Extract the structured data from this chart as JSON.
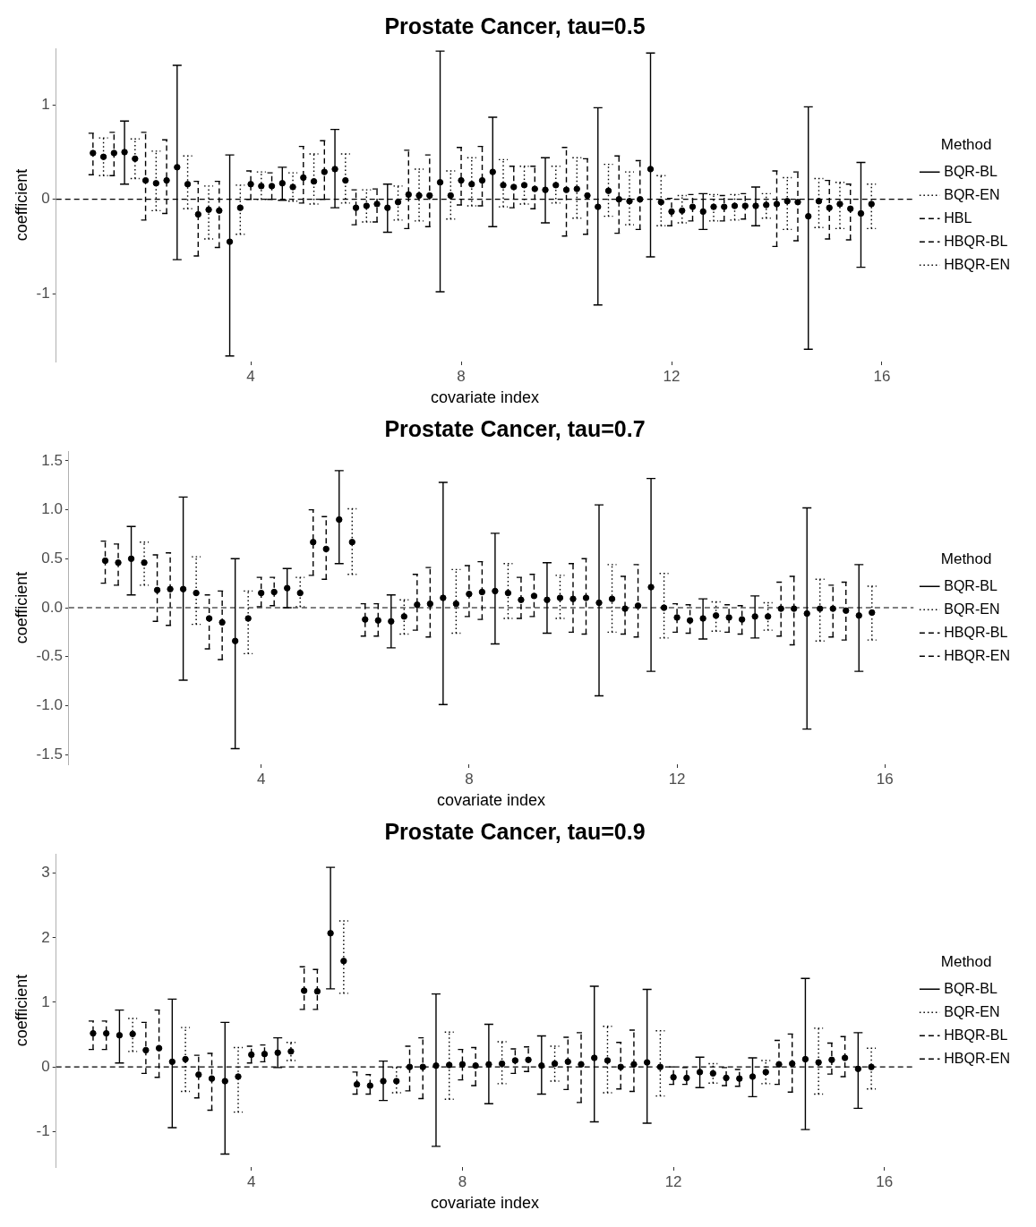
{
  "chart_data": [
    {
      "type": "scatter",
      "title": "Prostate Cancer, tau=0.5",
      "xlabel": "covariate index",
      "ylabel": "coefficient",
      "legend_title": "Method",
      "legend": "right",
      "marker": "circle",
      "grid": false,
      "xlim": [
        0.3,
        16.6
      ],
      "xticks": [
        4,
        8,
        12,
        16
      ],
      "ylim": [
        -1.72,
        1.6
      ],
      "yticks": [
        -1,
        0,
        1
      ],
      "ref_lines": [
        {
          "axis": "y",
          "value": 0,
          "line_style": "dashed"
        }
      ],
      "series": [
        {
          "name": "BQR-BL",
          "color": "#000000",
          "line_style": "solid",
          "x": [
            1.6,
            2.6,
            3.6,
            4.6,
            5.6,
            6.6,
            7.6,
            8.6,
            9.6,
            10.6,
            11.6,
            12.6,
            13.6,
            14.6,
            15.6
          ],
          "values": [
            0.5,
            0.34,
            -0.45,
            0.17,
            0.32,
            -0.09,
            0.18,
            0.29,
            0.1,
            -0.08,
            0.32,
            -0.13,
            -0.07,
            -0.18,
            -0.15
          ],
          "errors": [
            [
              0.16,
              0.83
            ],
            [
              -0.64,
              1.42
            ],
            [
              -1.66,
              0.47
            ],
            [
              -0.01,
              0.34
            ],
            [
              -0.09,
              0.74
            ],
            [
              -0.35,
              0.16
            ],
            [
              -0.98,
              1.57
            ],
            [
              -0.29,
              0.87
            ],
            [
              -0.25,
              0.44
            ],
            [
              -1.12,
              0.97
            ],
            [
              -0.61,
              1.55
            ],
            [
              -0.32,
              0.06
            ],
            [
              -0.28,
              0.13
            ],
            [
              -1.59,
              0.98
            ],
            [
              -0.72,
              0.39
            ]
          ]
        },
        {
          "name": "BQR-EN",
          "color": "#000000",
          "line_style": "dotted",
          "x": [
            1.8,
            2.8,
            3.8,
            4.8,
            5.8,
            6.8,
            7.8,
            8.8,
            9.8,
            10.8,
            11.8,
            12.8,
            13.8,
            14.8,
            15.8
          ],
          "values": [
            0.43,
            0.16,
            -0.09,
            0.13,
            0.2,
            -0.03,
            0.04,
            0.15,
            0.15,
            0.09,
            -0.03,
            -0.08,
            -0.06,
            -0.02,
            -0.05
          ],
          "errors": [
            [
              0.22,
              0.64
            ],
            [
              -0.1,
              0.46
            ],
            [
              -0.37,
              0.15
            ],
            [
              -0.02,
              0.28
            ],
            [
              -0.04,
              0.48
            ],
            [
              -0.22,
              0.14
            ],
            [
              -0.21,
              0.3
            ],
            [
              -0.08,
              0.42
            ],
            [
              -0.04,
              0.35
            ],
            [
              -0.18,
              0.37
            ],
            [
              -0.28,
              0.25
            ],
            [
              -0.23,
              0.05
            ],
            [
              -0.2,
              0.06
            ],
            [
              -0.3,
              0.22
            ],
            [
              -0.31,
              0.16
            ]
          ]
        },
        {
          "name": "HBL",
          "color": "#000000",
          "line_style": "dashed",
          "x": [
            1,
            2,
            3,
            4,
            5,
            6,
            7,
            8,
            9,
            10,
            11,
            12,
            13,
            14,
            15
          ],
          "values": [
            0.49,
            0.2,
            -0.16,
            0.16,
            0.23,
            -0.09,
            0.05,
            0.2,
            0.13,
            0.1,
            0.0,
            -0.13,
            -0.08,
            -0.05,
            -0.09
          ],
          "errors": [
            [
              0.26,
              0.7
            ],
            [
              -0.22,
              0.71
            ],
            [
              -0.6,
              0.19
            ],
            [
              0.0,
              0.3
            ],
            [
              -0.04,
              0.56
            ],
            [
              -0.27,
              0.1
            ],
            [
              -0.31,
              0.52
            ],
            [
              -0.06,
              0.55
            ],
            [
              -0.09,
              0.35
            ],
            [
              -0.39,
              0.55
            ],
            [
              -0.36,
              0.46
            ],
            [
              -0.28,
              0.01
            ],
            [
              -0.23,
              0.04
            ],
            [
              -0.5,
              0.3
            ],
            [
              -0.42,
              0.2
            ]
          ]
        },
        {
          "name": "HBQR-BL",
          "color": "#000000",
          "line_style": "dashed",
          "x": [
            1.4,
            2.4,
            3.4,
            4.4,
            5.4,
            6.4,
            7.4,
            8.4,
            9.4,
            10.4,
            11.4,
            12.4,
            13.4,
            14.4,
            15.4
          ],
          "values": [
            0.49,
            0.2,
            -0.12,
            0.14,
            0.29,
            -0.05,
            0.04,
            0.2,
            0.11,
            0.04,
            0.0,
            -0.08,
            -0.07,
            -0.03,
            -0.1
          ],
          "errors": [
            [
              0.25,
              0.71
            ],
            [
              -0.15,
              0.63
            ],
            [
              -0.51,
              0.19
            ],
            [
              0.0,
              0.28
            ],
            [
              0.0,
              0.62
            ],
            [
              -0.24,
              0.11
            ],
            [
              -0.29,
              0.47
            ],
            [
              -0.07,
              0.56
            ],
            [
              -0.1,
              0.35
            ],
            [
              -0.37,
              0.43
            ],
            [
              -0.32,
              0.41
            ],
            [
              -0.23,
              0.05
            ],
            [
              -0.21,
              0.06
            ],
            [
              -0.44,
              0.29
            ],
            [
              -0.43,
              0.16
            ]
          ]
        },
        {
          "name": "HBQR-EN",
          "color": "#000000",
          "line_style": "dotted",
          "x": [
            1.2,
            2.2,
            3.2,
            4.2,
            5.2,
            6.2,
            7.2,
            8.2,
            9.2,
            10.2,
            11.2,
            12.2,
            13.2,
            14.2,
            15.2
          ],
          "values": [
            0.45,
            0.17,
            -0.11,
            0.14,
            0.19,
            -0.07,
            0.04,
            0.16,
            0.15,
            0.11,
            -0.02,
            -0.12,
            -0.07,
            -0.02,
            -0.05
          ],
          "errors": [
            [
              0.25,
              0.65
            ],
            [
              -0.12,
              0.51
            ],
            [
              -0.42,
              0.14
            ],
            [
              0.0,
              0.29
            ],
            [
              -0.05,
              0.48
            ],
            [
              -0.24,
              0.1
            ],
            [
              -0.23,
              0.32
            ],
            [
              -0.07,
              0.44
            ],
            [
              -0.05,
              0.35
            ],
            [
              -0.2,
              0.44
            ],
            [
              -0.27,
              0.29
            ],
            [
              -0.25,
              0.04
            ],
            [
              -0.22,
              0.05
            ],
            [
              -0.32,
              0.23
            ],
            [
              -0.31,
              0.18
            ]
          ]
        }
      ]
    },
    {
      "type": "scatter",
      "title": "Prostate Cancer, tau=0.7",
      "xlabel": "covariate index",
      "ylabel": "coefficient",
      "legend_title": "Method",
      "legend": "right",
      "marker": "circle",
      "grid": false,
      "xlim": [
        0.3,
        16.55
      ],
      "xticks": [
        4,
        8,
        12,
        16
      ],
      "ylim": [
        -1.6,
        1.6
      ],
      "yticks": [
        -1.5,
        {
          "value": -1,
          "label": "-1.0"
        },
        -0.5,
        {
          "value": 0,
          "label": "0.0"
        },
        0.5,
        {
          "value": 1,
          "label": "1.0"
        },
        1.5
      ],
      "ref_lines": [
        {
          "axis": "y",
          "value": 0,
          "line_style": "dashed"
        }
      ],
      "series": [
        {
          "name": "BQR-BL",
          "color": "#000000",
          "line_style": "solid",
          "x": [
            1.5,
            2.5,
            3.5,
            4.5,
            5.5,
            6.5,
            7.5,
            8.5,
            9.5,
            10.5,
            11.5,
            12.5,
            13.5,
            14.5,
            15.5
          ],
          "values": [
            0.5,
            0.19,
            -0.34,
            0.2,
            0.9,
            -0.14,
            0.1,
            0.17,
            0.08,
            0.05,
            0.21,
            -0.11,
            -0.09,
            -0.06,
            -0.08
          ],
          "errors": [
            [
              0.13,
              0.83
            ],
            [
              -0.74,
              1.13
            ],
            [
              -1.44,
              0.5
            ],
            [
              0.0,
              0.4
            ],
            [
              0.45,
              1.4
            ],
            [
              -0.41,
              0.13
            ],
            [
              -0.99,
              1.28
            ],
            [
              -0.37,
              0.76
            ],
            [
              -0.26,
              0.46
            ],
            [
              -0.9,
              1.05
            ],
            [
              -0.65,
              1.32
            ],
            [
              -0.32,
              0.09
            ],
            [
              -0.31,
              0.12
            ],
            [
              -1.24,
              1.02
            ],
            [
              -0.65,
              0.44
            ]
          ]
        },
        {
          "name": "BQR-EN",
          "color": "#000000",
          "line_style": "dotted",
          "x": [
            1.75,
            2.75,
            3.75,
            4.75,
            5.75,
            6.75,
            7.75,
            8.75,
            9.75,
            10.75,
            11.75,
            12.75,
            13.75,
            14.75,
            15.75
          ],
          "values": [
            0.46,
            0.15,
            -0.11,
            0.15,
            0.67,
            -0.09,
            0.04,
            0.15,
            0.1,
            0.09,
            0.0,
            -0.08,
            -0.09,
            -0.01,
            -0.05
          ],
          "errors": [
            [
              0.23,
              0.67
            ],
            [
              -0.17,
              0.52
            ],
            [
              -0.47,
              0.17
            ],
            [
              0.01,
              0.31
            ],
            [
              0.34,
              1.01
            ],
            [
              -0.27,
              0.08
            ],
            [
              -0.26,
              0.39
            ],
            [
              -0.11,
              0.45
            ],
            [
              -0.11,
              0.33
            ],
            [
              -0.25,
              0.44
            ],
            [
              -0.31,
              0.35
            ],
            [
              -0.24,
              0.06
            ],
            [
              -0.23,
              0.05
            ],
            [
              -0.34,
              0.29
            ],
            [
              -0.33,
              0.22
            ]
          ]
        },
        {
          "name": "HBQR-BL",
          "color": "#000000",
          "line_style": "dashed",
          "x": [
            1,
            2,
            3,
            4,
            5,
            6,
            7,
            8,
            9,
            10,
            11,
            12,
            13,
            14,
            15
          ],
          "values": [
            0.48,
            0.18,
            -0.11,
            0.15,
            0.67,
            -0.12,
            0.03,
            0.14,
            0.08,
            0.09,
            -0.01,
            -0.1,
            -0.1,
            -0.01,
            -0.01
          ],
          "errors": [
            [
              0.25,
              0.68
            ],
            [
              -0.14,
              0.54
            ],
            [
              -0.42,
              0.13
            ],
            [
              0.01,
              0.31
            ],
            [
              0.33,
              1.0
            ],
            [
              -0.29,
              0.04
            ],
            [
              -0.23,
              0.34
            ],
            [
              -0.09,
              0.43
            ],
            [
              -0.11,
              0.31
            ],
            [
              -0.25,
              0.45
            ],
            [
              -0.27,
              0.32
            ],
            [
              -0.25,
              0.04
            ],
            [
              -0.25,
              0.03
            ],
            [
              -0.29,
              0.26
            ],
            [
              -0.3,
              0.23
            ]
          ]
        },
        {
          "name": "HBQR-EN",
          "color": "#000000",
          "line_style": "dashed",
          "x": [
            1.25,
            2.25,
            3.25,
            4.25,
            5.25,
            6.25,
            7.25,
            8.25,
            9.25,
            10.25,
            11.25,
            12.25,
            13.25,
            14.25,
            15.25
          ],
          "values": [
            0.46,
            0.19,
            -0.15,
            0.16,
            0.6,
            -0.13,
            0.04,
            0.16,
            0.12,
            0.1,
            0.02,
            -0.13,
            -0.12,
            -0.01,
            -0.03
          ],
          "errors": [
            [
              0.23,
              0.65
            ],
            [
              -0.18,
              0.56
            ],
            [
              -0.53,
              0.17
            ],
            [
              0.02,
              0.31
            ],
            [
              0.29,
              0.93
            ],
            [
              -0.29,
              0.04
            ],
            [
              -0.3,
              0.41
            ],
            [
              -0.12,
              0.47
            ],
            [
              -0.09,
              0.34
            ],
            [
              -0.27,
              0.5
            ],
            [
              -0.3,
              0.44
            ],
            [
              -0.26,
              0.03
            ],
            [
              -0.27,
              0.02
            ],
            [
              -0.38,
              0.32
            ],
            [
              -0.33,
              0.26
            ]
          ]
        }
      ]
    },
    {
      "type": "scatter",
      "title": "Prostate Cancer, tau=0.9",
      "xlabel": "covariate index",
      "ylabel": "coefficient",
      "legend_title": "Method",
      "legend": "right",
      "marker": "circle",
      "grid": false,
      "xlim": [
        0.3,
        16.55
      ],
      "xticks": [
        4,
        8,
        12,
        16
      ],
      "ylim": [
        -1.55,
        3.3
      ],
      "yticks": [
        -1,
        0,
        1,
        2,
        3
      ],
      "ref_lines": [
        {
          "axis": "y",
          "value": 0,
          "line_style": "dashed"
        }
      ],
      "series": [
        {
          "name": "BQR-BL",
          "color": "#000000",
          "line_style": "solid",
          "x": [
            1.5,
            2.5,
            3.5,
            4.5,
            5.5,
            6.5,
            7.5,
            8.5,
            9.5,
            10.5,
            11.5,
            12.5,
            13.5,
            14.5,
            15.5
          ],
          "values": [
            0.49,
            0.08,
            -0.22,
            0.22,
            2.07,
            -0.22,
            0.02,
            0.04,
            0.02,
            0.14,
            0.07,
            -0.08,
            -0.15,
            0.12,
            -0.03
          ],
          "errors": [
            [
              0.06,
              0.88
            ],
            [
              -0.94,
              1.05
            ],
            [
              -1.35,
              0.69
            ],
            [
              -0.01,
              0.45
            ],
            [
              1.21,
              3.09
            ],
            [
              -0.52,
              0.09
            ],
            [
              -1.23,
              1.13
            ],
            [
              -0.57,
              0.66
            ],
            [
              -0.42,
              0.48
            ],
            [
              -0.85,
              1.25
            ],
            [
              -0.87,
              1.2
            ],
            [
              -0.32,
              0.15
            ],
            [
              -0.46,
              0.14
            ],
            [
              -0.97,
              1.37
            ],
            [
              -0.64,
              0.53
            ]
          ]
        },
        {
          "name": "BQR-EN",
          "color": "#000000",
          "line_style": "dotted",
          "x": [
            1.75,
            2.75,
            3.75,
            4.75,
            5.75,
            6.75,
            7.75,
            8.75,
            9.75,
            10.75,
            11.75,
            12.75,
            13.75,
            14.75,
            15.75
          ],
          "values": [
            0.51,
            0.12,
            -0.15,
            0.24,
            1.64,
            -0.22,
            0.03,
            0.05,
            0.05,
            0.1,
            0.0,
            -0.1,
            -0.08,
            0.07,
            0.0
          ],
          "errors": [
            [
              0.24,
              0.75
            ],
            [
              -0.38,
              0.61
            ],
            [
              -0.7,
              0.3
            ],
            [
              0.1,
              0.38
            ],
            [
              1.14,
              2.26
            ],
            [
              -0.4,
              -0.01
            ],
            [
              -0.5,
              0.54
            ],
            [
              -0.26,
              0.39
            ],
            [
              -0.22,
              0.32
            ],
            [
              -0.4,
              0.63
            ],
            [
              -0.45,
              0.56
            ],
            [
              -0.25,
              0.05
            ],
            [
              -0.26,
              0.1
            ],
            [
              -0.42,
              0.6
            ],
            [
              -0.34,
              0.29
            ]
          ]
        },
        {
          "name": "HBQR-BL",
          "color": "#000000",
          "line_style": "dashed",
          "x": [
            1,
            2,
            3,
            4,
            5,
            6,
            7,
            8,
            9,
            10,
            11,
            12,
            13,
            14,
            15
          ],
          "values": [
            0.52,
            0.26,
            -0.12,
            0.19,
            1.18,
            -0.27,
            0.0,
            0.04,
            0.1,
            0.08,
            0.0,
            -0.16,
            -0.17,
            0.04,
            0.11
          ],
          "errors": [
            [
              0.27,
              0.71
            ],
            [
              -0.1,
              0.69
            ],
            [
              -0.48,
              0.18
            ],
            [
              0.06,
              0.32
            ],
            [
              0.89,
              1.55
            ],
            [
              -0.42,
              -0.08
            ],
            [
              -0.37,
              0.32
            ],
            [
              -0.2,
              0.27
            ],
            [
              -0.1,
              0.28
            ],
            [
              -0.35,
              0.46
            ],
            [
              -0.34,
              0.38
            ],
            [
              -0.27,
              0.0
            ],
            [
              -0.29,
              -0.01
            ],
            [
              -0.27,
              0.41
            ],
            [
              -0.11,
              0.37
            ]
          ]
        },
        {
          "name": "HBQR-EN",
          "color": "#000000",
          "line_style": "dashed",
          "x": [
            1.25,
            2.25,
            3.25,
            4.25,
            5.25,
            6.25,
            7.25,
            8.25,
            9.25,
            10.25,
            11.25,
            12.25,
            13.25,
            14.25,
            15.25
          ],
          "values": [
            0.52,
            0.29,
            -0.18,
            0.2,
            1.17,
            -0.29,
            0.0,
            0.02,
            0.11,
            0.04,
            0.04,
            -0.17,
            -0.18,
            0.05,
            0.14
          ],
          "errors": [
            [
              0.27,
              0.71
            ],
            [
              -0.16,
              0.88
            ],
            [
              -0.67,
              0.21
            ],
            [
              0.08,
              0.34
            ],
            [
              0.89,
              1.51
            ],
            [
              -0.42,
              -0.12
            ],
            [
              -0.49,
              0.45
            ],
            [
              -0.29,
              0.3
            ],
            [
              -0.07,
              0.31
            ],
            [
              -0.55,
              0.53
            ],
            [
              -0.38,
              0.57
            ],
            [
              -0.27,
              -0.01
            ],
            [
              -0.3,
              -0.04
            ],
            [
              -0.39,
              0.51
            ],
            [
              -0.15,
              0.47
            ]
          ]
        }
      ]
    }
  ]
}
